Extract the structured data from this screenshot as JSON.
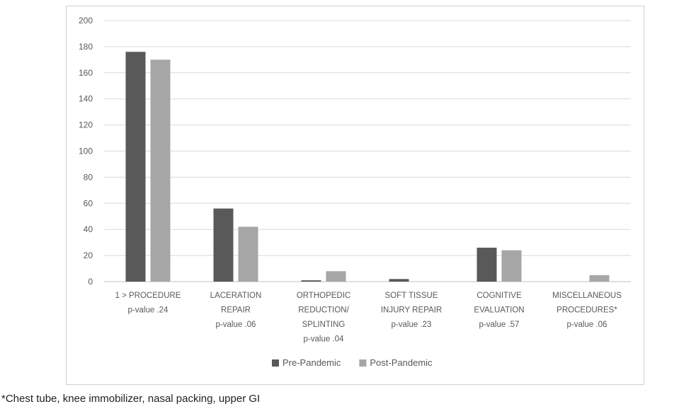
{
  "chart_data": {
    "type": "bar",
    "categories": [
      [
        "1 > PROCEDURE",
        "p-value .24"
      ],
      [
        "LACERATION",
        "REPAIR",
        "p-value .06"
      ],
      [
        "ORTHOPEDIC",
        "REDUCTION/",
        "SPLINTING",
        "p-value .04"
      ],
      [
        "SOFT TISSUE",
        "INJURY REPAIR",
        "p-value .23"
      ],
      [
        "COGNITIVE",
        "EVALUATION",
        "p-value .57"
      ],
      [
        "MISCELLANEOUS",
        "PROCEDURES*",
        "p-value .06"
      ]
    ],
    "series": [
      {
        "name": "Pre-Pandemic",
        "color": "#595959",
        "values": [
          176,
          56,
          1,
          2,
          26,
          0
        ]
      },
      {
        "name": "Post-Pandemic",
        "color": "#a6a6a6",
        "values": [
          170,
          42,
          8,
          0,
          24,
          5
        ]
      }
    ],
    "ylim": [
      0,
      200
    ],
    "yticks": [
      0,
      20,
      40,
      60,
      80,
      100,
      120,
      140,
      160,
      180,
      200
    ],
    "grid": true,
    "legend_position": "bottom"
  },
  "footnote": "*Chest tube, knee immobilizer, nasal packing, upper GI"
}
